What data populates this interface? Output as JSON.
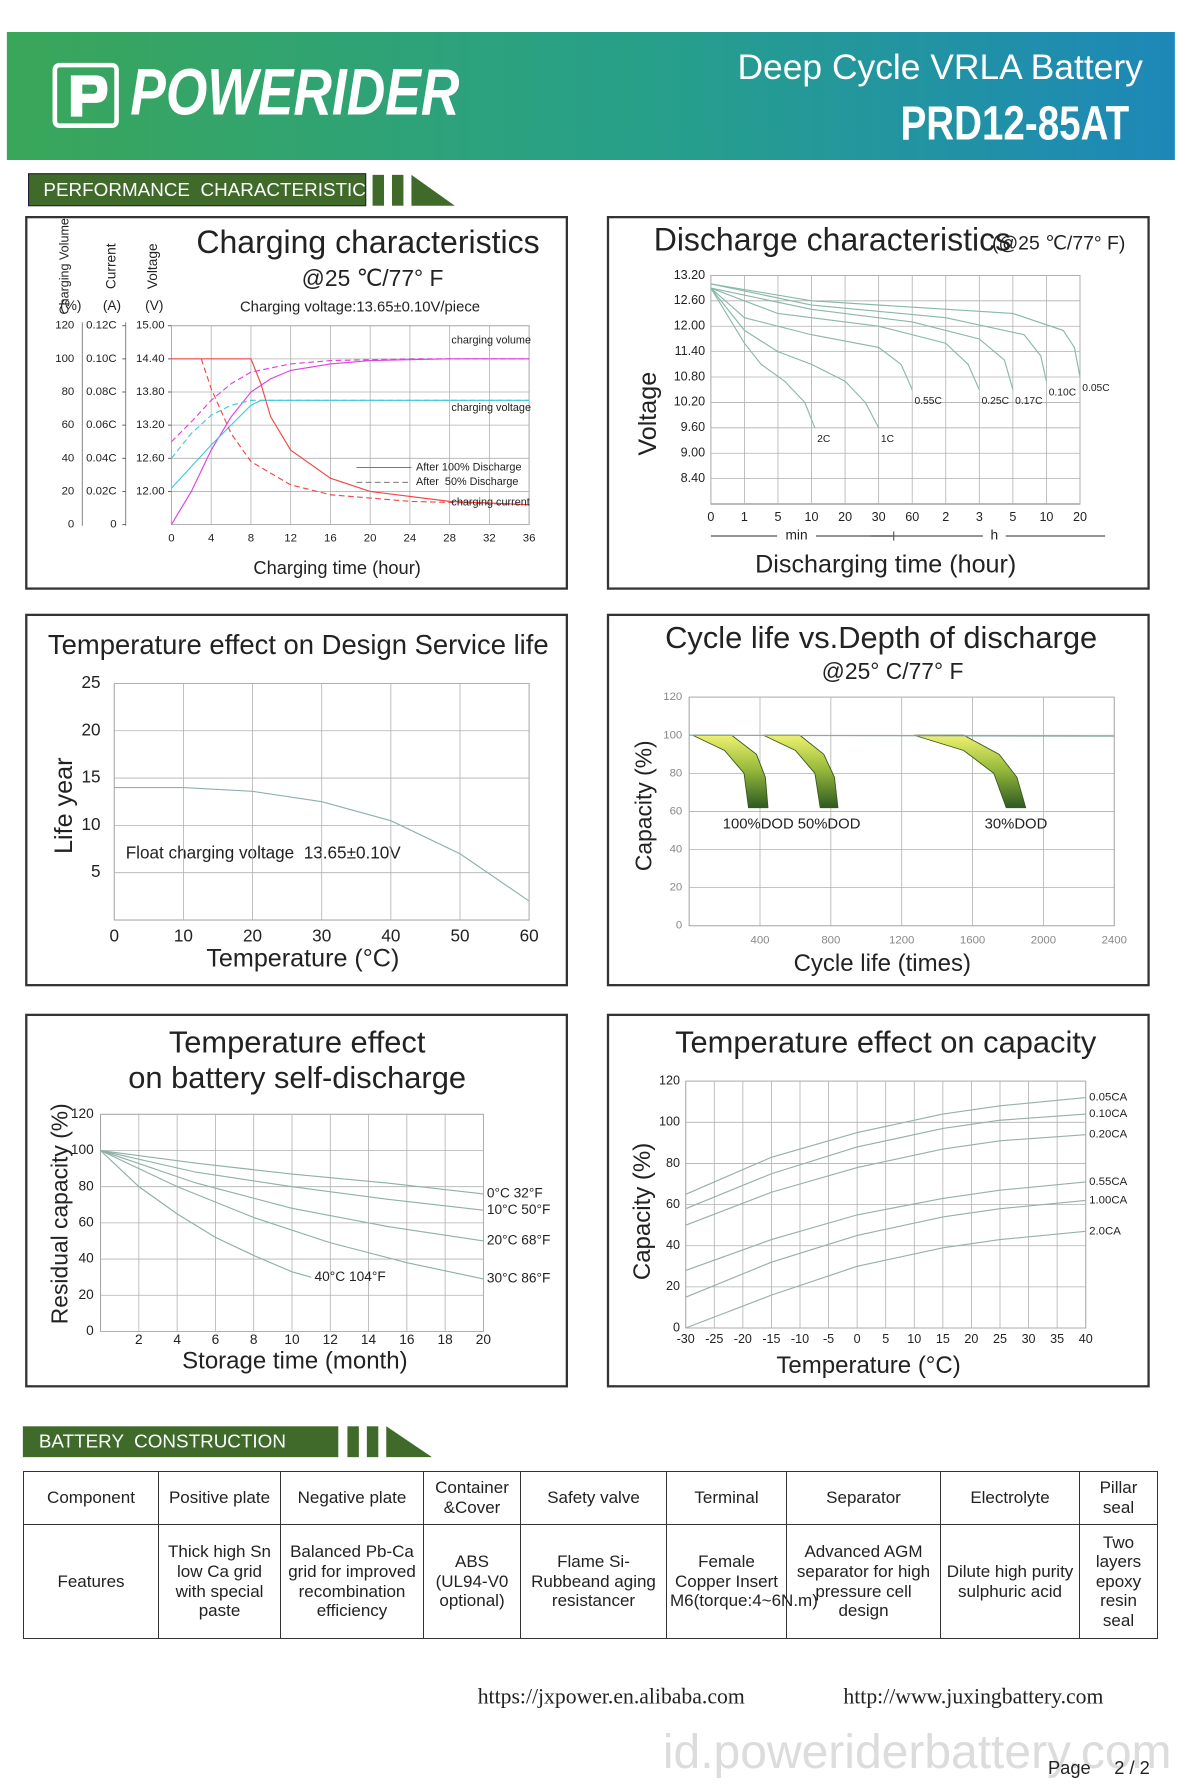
{
  "header": {
    "brand": "POWERIDER",
    "product_line": "Deep Cycle VRLA Battery",
    "model": "PRD12-85AT"
  },
  "sections": [
    "PERFORMANCE  CHARACTERISTIC",
    "BATTERY  CONSTRUCTION"
  ],
  "charts": [
    {
      "type": "line",
      "title": "Charging characteristics",
      "subtitle": "@25 ℃/77° F",
      "note": "Charging voltage:13.65±0.10V/piece",
      "y_label": "Charging Volume",
      "y_unit": "(%)",
      "current_label": "Current",
      "current_unit": "(A)",
      "voltage_label": "Voltage",
      "voltage_unit": "(V)",
      "x_label": "Charging time (hour)",
      "xlim": [
        0,
        36
      ],
      "xticks": [
        0,
        4,
        8,
        12,
        16,
        20,
        24,
        28,
        32,
        36
      ],
      "ylim": [
        0,
        120
      ],
      "yticks": [
        0,
        20,
        40,
        60,
        80,
        100,
        120
      ],
      "current_ticks": [
        0,
        {
          "value": 20,
          "label": "0.02C"
        },
        {
          "value": 40,
          "label": "0.04C"
        },
        {
          "value": 60,
          "label": "0.06C"
        },
        {
          "value": 80,
          "label": "0.08C"
        },
        {
          "value": 100,
          "label": "0.10C"
        },
        {
          "value": 120,
          "label": "0.12C"
        }
      ],
      "voltage_ticks": [
        {
          "value": 20,
          "label": "12.00"
        },
        {
          "value": 40,
          "label": "12.60"
        },
        {
          "value": 60,
          "label": "13.20"
        },
        {
          "value": 80,
          "label": "13.80"
        },
        {
          "value": 100,
          "label": "14.40"
        },
        {
          "value": 120,
          "label": "15.00"
        }
      ],
      "curve_labels": [
        "charging volume",
        "charging voltage",
        "charging current"
      ],
      "legend": [
        {
          "label": "After 100% Discharge",
          "style": "solid"
        },
        {
          "label": "After  50% Discharge",
          "style": "dashed"
        }
      ],
      "series": [
        {
          "color": "#e040e0",
          "style": "solid",
          "x": [
            0,
            2,
            4,
            6,
            8,
            10,
            12,
            16,
            20,
            28,
            36
          ],
          "y": [
            0,
            20,
            45,
            65,
            80,
            88,
            93,
            97,
            99,
            100,
            100
          ]
        },
        {
          "color": "#e040e0",
          "style": "dashed",
          "x": [
            0,
            2,
            4,
            6,
            8,
            12,
            16,
            24,
            36
          ],
          "y": [
            50,
            62,
            75,
            85,
            92,
            97,
            99,
            100,
            100
          ]
        },
        {
          "color": "#40c8e0",
          "style": "solid",
          "x": [
            0,
            2,
            4,
            6,
            8,
            9,
            36
          ],
          "y": [
            22,
            35,
            48,
            60,
            72,
            75,
            75
          ]
        },
        {
          "color": "#40c8e0",
          "style": "dashed",
          "x": [
            0,
            2,
            4,
            6,
            8,
            36
          ],
          "y": [
            40,
            55,
            66,
            72,
            75,
            75
          ]
        },
        {
          "color": "#f04848",
          "style": "solid",
          "x": [
            0,
            8,
            9,
            10,
            12,
            16,
            20,
            28,
            36
          ],
          "y": [
            100,
            100,
            85,
            65,
            45,
            28,
            20,
            14,
            12
          ]
        },
        {
          "color": "#f04848",
          "style": "dashed",
          "x": [
            3,
            4,
            6,
            8,
            12,
            16,
            24,
            36
          ],
          "y": [
            100,
            82,
            55,
            38,
            24,
            18,
            14,
            12
          ]
        }
      ]
    },
    {
      "type": "line",
      "title": "Discharge characteristics",
      "subtitle": "(@25 ℃/77° F)",
      "y_label": "Voltage",
      "x_label": "Discharging time (hour)",
      "x_units": [
        "min",
        "h"
      ],
      "xlim": [
        0,
        1200
      ],
      "xticks": [
        0,
        1,
        5,
        10,
        20,
        30,
        60,
        {
          "value": 120,
          "label": "2"
        },
        {
          "value": 180,
          "label": "3"
        },
        {
          "value": 300,
          "label": "5"
        },
        {
          "value": 600,
          "label": "10"
        },
        {
          "value": 1200,
          "label": "20"
        }
      ],
      "ylim": [
        7.8,
        13.2
      ],
      "yticks": [
        {
          "value": 8.4,
          "label": "8.40"
        },
        {
          "value": 9,
          "label": "9.00"
        },
        {
          "value": 9.6,
          "label": "9.60"
        },
        {
          "value": 10.2,
          "label": "10.20"
        },
        {
          "value": 10.8,
          "label": "10.80"
        },
        {
          "value": 11.4,
          "label": "11.40"
        },
        {
          "value": 12,
          "label": "12.00"
        },
        {
          "value": 12.6,
          "label": "12.60"
        },
        {
          "value": 13.2,
          "label": "13.20"
        }
      ],
      "series": [
        {
          "name": "2C",
          "color": "#8ab8a8",
          "x": [
            0,
            1,
            3,
            6,
            9,
            11
          ],
          "y": [
            12.9,
            11.6,
            11.1,
            10.7,
            10.2,
            9.6
          ]
        },
        {
          "name": "1C",
          "color": "#8ab8a8",
          "x": [
            0,
            1,
            5,
            10,
            20,
            26,
            30
          ],
          "y": [
            12.9,
            11.9,
            11.4,
            11.1,
            10.7,
            10.2,
            9.6
          ]
        },
        {
          "name": "0.55C",
          "color": "#8ab8a8",
          "x": [
            0,
            1,
            10,
            30,
            50,
            60
          ],
          "y": [
            12.9,
            12.2,
            11.8,
            11.5,
            11.1,
            10.5
          ]
        },
        {
          "name": "0.25C",
          "color": "#8ab8a8",
          "x": [
            0,
            5,
            30,
            120,
            160,
            180
          ],
          "y": [
            12.9,
            12.3,
            12,
            11.6,
            11.1,
            10.5
          ]
        },
        {
          "name": "0.17C",
          "color": "#8ab8a8",
          "x": [
            0,
            10,
            60,
            180,
            270,
            300
          ],
          "y": [
            12.9,
            12.4,
            12.1,
            11.7,
            11.2,
            10.5
          ]
        },
        {
          "name": "0.10C",
          "color": "#8ab8a8",
          "x": [
            0,
            10,
            120,
            400,
            550,
            600
          ],
          "y": [
            13,
            12.5,
            12.2,
            11.8,
            11.3,
            10.7
          ]
        },
        {
          "name": "0.05C",
          "color": "#8ab8a8",
          "x": [
            0,
            10,
            300,
            900,
            1100,
            1200
          ],
          "y": [
            13,
            12.6,
            12.3,
            11.9,
            11.5,
            10.8
          ]
        }
      ]
    },
    {
      "type": "line",
      "title": "Temperature effect on Design Service life",
      "y_label": "Life year",
      "x_label": "Temperature (°C)",
      "note": "Float charging voltage  13.65±0.10V",
      "xlim": [
        0,
        60
      ],
      "xticks": [
        0,
        10,
        20,
        30,
        40,
        50,
        60
      ],
      "ylim": [
        0,
        25
      ],
      "yticks": [
        5,
        10,
        15,
        20,
        25
      ],
      "series": [
        {
          "color": "#8fb0b0",
          "x": [
            0,
            10,
            20,
            30,
            40,
            50,
            60
          ],
          "y": [
            14,
            14,
            13.6,
            12.5,
            10.5,
            7,
            2
          ]
        }
      ]
    },
    {
      "type": "line",
      "title": "Cycle life vs.Depth of discharge",
      "subtitle": "@25° C/77° F",
      "y_label": "Capacity (%)",
      "x_label": "Cycle life (times)",
      "xlim": [
        0,
        2400
      ],
      "xticks": [
        400,
        800,
        1200,
        1600,
        2000,
        2400
      ],
      "ylim": [
        0,
        120
      ],
      "yticks": [
        0,
        20,
        40,
        60,
        80,
        100,
        120
      ],
      "series": [
        {
          "color": "#8aa8a0",
          "x": [
            0,
            2400
          ],
          "y": [
            100,
            99.5
          ]
        }
      ],
      "bands": [
        {
          "name": "100%DOD",
          "left_x": [
            20,
            200,
            310,
            335
          ],
          "left_y": [
            100,
            92,
            80,
            62
          ],
          "right_x": [
            240,
            380,
            430,
            445
          ],
          "right_y": [
            100,
            90,
            78,
            62
          ]
        },
        {
          "name": "50%DOD",
          "left_x": [
            420,
            600,
            710,
            740
          ],
          "left_y": [
            100,
            92,
            80,
            62
          ],
          "right_x": [
            625,
            760,
            820,
            840
          ],
          "right_y": [
            100,
            90,
            78,
            62
          ]
        },
        {
          "name": "30%DOD",
          "left_x": [
            1270,
            1550,
            1720,
            1790
          ],
          "left_y": [
            100,
            92,
            80,
            62
          ],
          "right_x": [
            1550,
            1750,
            1850,
            1900
          ],
          "right_y": [
            100,
            90,
            78,
            62
          ]
        }
      ]
    },
    {
      "type": "line",
      "title": [
        "Temperature effect",
        "on battery self-discharge"
      ],
      "y_label": "Residual capacity (%)",
      "x_label": "Storage time (month)",
      "xlim": [
        0,
        20
      ],
      "xticks": [
        2,
        4,
        6,
        8,
        10,
        12,
        14,
        16,
        18,
        20
      ],
      "ylim": [
        0,
        120
      ],
      "yticks": [
        0,
        20,
        40,
        60,
        80,
        100,
        120
      ],
      "series": [
        {
          "name": "0°C 32°F",
          "color": "#8fb0a8",
          "x": [
            0,
            5,
            10,
            15,
            20
          ],
          "y": [
            100,
            93,
            87,
            82,
            76
          ]
        },
        {
          "name": "10°C 50°F",
          "color": "#8fb0a8",
          "x": [
            0,
            5,
            10,
            15,
            20
          ],
          "y": [
            100,
            88,
            80,
            73,
            67
          ]
        },
        {
          "name": "20°C 68°F",
          "color": "#8fb0a8",
          "x": [
            0,
            5,
            10,
            15,
            20
          ],
          "y": [
            100,
            82,
            68,
            58,
            50
          ]
        },
        {
          "name": "30°C 86°F",
          "color": "#8fb0a8",
          "x": [
            0,
            4,
            8,
            12,
            16,
            20
          ],
          "y": [
            100,
            80,
            63,
            49,
            38,
            29
          ]
        },
        {
          "name": "40°C 104°F",
          "color": "#8fb0a8",
          "x": [
            0,
            2,
            4,
            6,
            8,
            10,
            11
          ],
          "y": [
            100,
            80,
            65,
            52,
            42,
            33,
            30
          ]
        }
      ]
    },
    {
      "type": "line",
      "title": "Temperature effect on capacity",
      "y_label": "Capacity (%)",
      "x_label": "Temperature (°C)",
      "xlim": [
        -30,
        40
      ],
      "xticks": [
        -30,
        -25,
        -20,
        -15,
        -10,
        -5,
        0,
        5,
        10,
        15,
        20,
        25,
        30,
        35,
        40
      ],
      "ylim": [
        0,
        120
      ],
      "yticks": [
        0,
        20,
        40,
        60,
        80,
        100,
        120
      ],
      "series": [
        {
          "name": "0.05CA",
          "color": "#99b0a8",
          "x": [
            -30,
            -15,
            0,
            15,
            25,
            40
          ],
          "y": [
            65,
            83,
            95,
            104,
            108,
            112
          ]
        },
        {
          "name": "0.10CA",
          "color": "#99b0a8",
          "x": [
            -30,
            -15,
            0,
            15,
            25,
            40
          ],
          "y": [
            58,
            75,
            88,
            97,
            101,
            104
          ]
        },
        {
          "name": "0.20CA",
          "color": "#99b0a8",
          "x": [
            -30,
            -15,
            0,
            15,
            25,
            40
          ],
          "y": [
            50,
            66,
            78,
            87,
            91,
            94
          ]
        },
        {
          "name": "0.55CA",
          "color": "#99b0a8",
          "x": [
            -30,
            -15,
            0,
            15,
            25,
            40
          ],
          "y": [
            28,
            43,
            55,
            63,
            67,
            71
          ]
        },
        {
          "name": "1.00CA",
          "color": "#99b0a8",
          "x": [
            -30,
            -15,
            0,
            15,
            25,
            40
          ],
          "y": [
            15,
            32,
            45,
            54,
            58,
            62
          ]
        },
        {
          "name": "2.0CA",
          "color": "#99b0a8",
          "x": [
            -30,
            -15,
            0,
            15,
            25,
            40
          ],
          "y": [
            0,
            16,
            30,
            39,
            43,
            47
          ]
        }
      ]
    }
  ],
  "table": {
    "rows": [
      [
        "Component",
        "Positive plate",
        "Negative plate",
        "Container &Cover",
        "Safety valve",
        "Terminal",
        "Separator",
        "Electrolyte",
        "Pillar seal"
      ],
      [
        "Features",
        "Thick high Sn low Ca grid with special paste",
        "Balanced Pb-Ca grid for improved recombination efficiency",
        "ABS (UL94-V0 optional)",
        "Flame Si-Rubbeand aging resistancer",
        "Female Copper Insert M6(torque:4~6N.m)",
        "Advanced AGM separator for high pressure cell design",
        "Dilute high purity sulphuric acid",
        "Two layers epoxy resin seal"
      ]
    ]
  },
  "footer": {
    "links": [
      "https://jxpower.en.alibaba.com",
      "http://www.juxingbattery.com"
    ],
    "watermark": "id.poweriderbattery.com",
    "page_label": "Page",
    "page_number": "2 / 2"
  }
}
